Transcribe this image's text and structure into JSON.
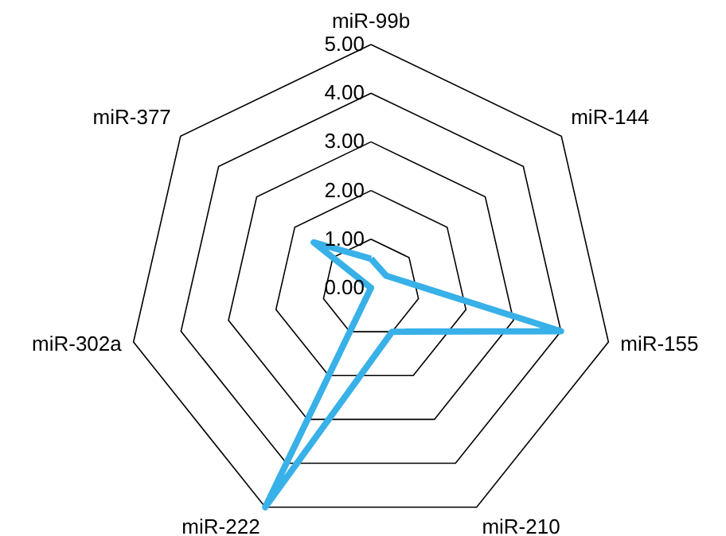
{
  "chart_data": {
    "type": "radar",
    "categories": [
      "miR-99b",
      "miR-144",
      "miR-155",
      "miR-210",
      "miR-222",
      "miR-302a",
      "miR-377"
    ],
    "series": [
      {
        "color": "#38b0e8",
        "values": [
          0.6,
          0.4,
          4.0,
          1.0,
          5.0,
          0.0,
          1.5
        ]
      }
    ],
    "ylim": [
      0,
      5
    ],
    "yticks": [
      {
        "value": 0,
        "label": "0.00"
      },
      {
        "value": 1,
        "label": "1.00"
      },
      {
        "value": 2,
        "label": "2.00"
      },
      {
        "value": 3,
        "label": "3.00"
      },
      {
        "value": 4,
        "label": "4.00"
      },
      {
        "value": 5,
        "label": "5.00"
      }
    ],
    "grid": true
  }
}
